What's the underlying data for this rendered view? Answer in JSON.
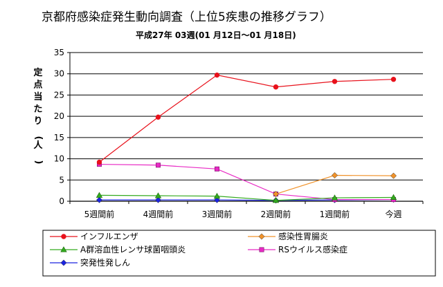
{
  "chart_data": {
    "type": "line",
    "title": "京都府感染症発生動向調査（上位5疾患の推移グラフ）",
    "subtitle": "平成27年 03週(01 月12日〜01 月18日)",
    "ylabel": "定点当たり(人)",
    "xlabel": "",
    "ylim": [
      0,
      35
    ],
    "yticks": [
      "0",
      "5",
      "10",
      "15",
      "20",
      "25",
      "30",
      "35"
    ],
    "grid": true,
    "legend_position": "bottom",
    "categories": [
      "5週間前",
      "4週間前",
      "3週間前",
      "2週間前",
      "1週間前",
      "今週"
    ],
    "series": [
      {
        "name": "インフルエンザ",
        "color": "#e8111b",
        "marker": "circle",
        "values": [
          9.2,
          19.8,
          29.7,
          26.9,
          28.2,
          28.7
        ]
      },
      {
        "name": "感染性胃腸炎",
        "color": "#f0922a",
        "marker": "diamond",
        "values": [
          null,
          null,
          null,
          1.7,
          6.1,
          6.0
        ]
      },
      {
        "name": "A群溶血性レンサ球菌咽頭炎",
        "color": "#33aa1e",
        "marker": "triangle",
        "values": [
          1.4,
          1.3,
          1.2,
          0.2,
          0.8,
          0.9
        ]
      },
      {
        "name": "RSウイルス感染症",
        "color": "#e829c4",
        "marker": "square",
        "values": [
          8.7,
          8.5,
          7.6,
          1.7,
          0.4,
          0.4
        ]
      },
      {
        "name": "突発性発しん",
        "color": "#1b23e0",
        "marker": "diamond",
        "values": [
          0.3,
          0.3,
          0.3,
          0.2,
          0.3,
          0.4
        ]
      }
    ]
  }
}
